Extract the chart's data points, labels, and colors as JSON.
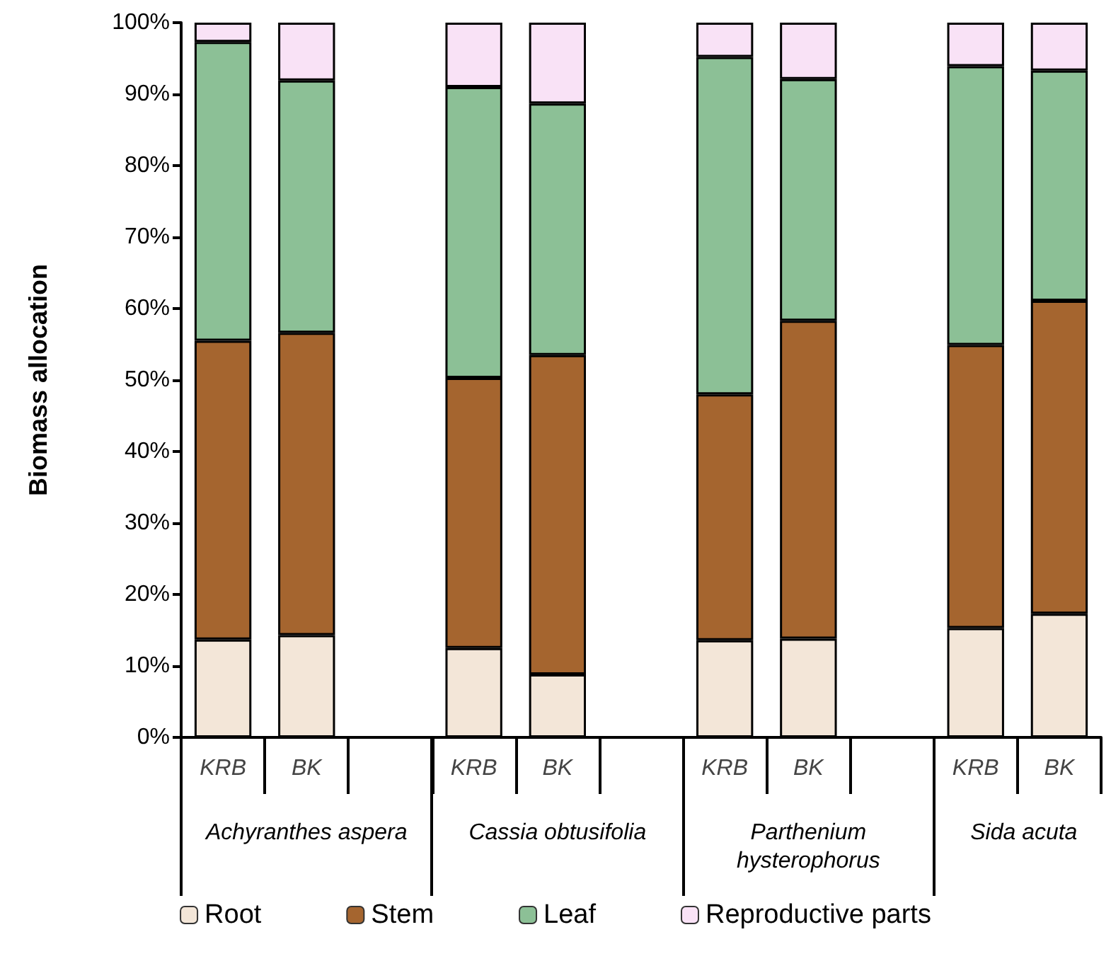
{
  "chart_data": {
    "type": "bar",
    "stacked": true,
    "categories": [
      "KRB",
      "BK",
      null,
      "KRB",
      "BK",
      null,
      "KRB",
      "BK",
      null,
      "KRB",
      "BK"
    ],
    "series": [
      {
        "name": "Root",
        "color": "#f3e6d8",
        "values": [
          13.7,
          14.3,
          null,
          12.5,
          8.8,
          null,
          13.6,
          13.8,
          null,
          15.3,
          17.3
        ]
      },
      {
        "name": "Stem",
        "color": "#a5652f",
        "values": [
          41.8,
          42.3,
          null,
          37.8,
          44.7,
          null,
          34.4,
          44.5,
          null,
          39.6,
          43.8
        ]
      },
      {
        "name": "Leaf",
        "color": "#8cc096",
        "values": [
          41.8,
          35.3,
          null,
          40.7,
          35.2,
          null,
          47.2,
          33.8,
          null,
          39.0,
          32.2
        ]
      },
      {
        "name": "Reproductive parts",
        "color": "#f9e2f6",
        "values": [
          2.7,
          8.1,
          null,
          9.0,
          11.3,
          null,
          4.8,
          7.9,
          null,
          6.1,
          6.7
        ]
      }
    ],
    "ylabel": "Biomass allocation",
    "ylim": [
      0,
      100
    ],
    "yticks": [
      {
        "value": 0,
        "label": "0%"
      },
      {
        "value": 10,
        "label": "10%"
      },
      {
        "value": 20,
        "label": "20%"
      },
      {
        "value": 30,
        "label": "30%"
      },
      {
        "value": 40,
        "label": "40%"
      },
      {
        "value": 50,
        "label": "50%"
      },
      {
        "value": 60,
        "label": "60%"
      },
      {
        "value": 70,
        "label": "70%"
      },
      {
        "value": 80,
        "label": "80%"
      },
      {
        "value": 90,
        "label": "90%"
      },
      {
        "value": 100,
        "label": "100%"
      }
    ],
    "annotations": [
      "Achyranthes aspera",
      "Cassia obtusifolia",
      "Parthenium hysterophorus",
      "Sida acuta"
    ],
    "grid": false,
    "legend": "bottom"
  }
}
